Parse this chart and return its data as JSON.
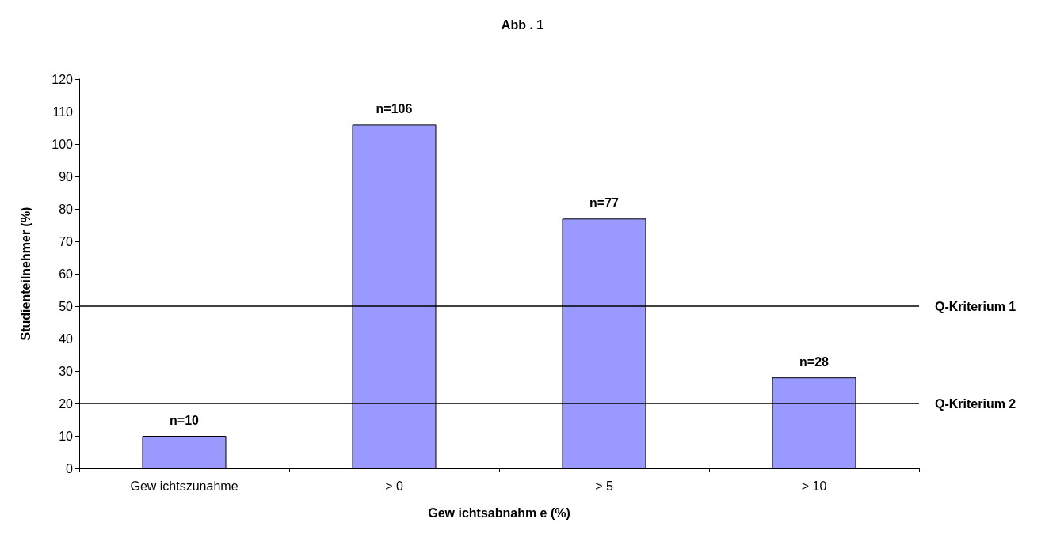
{
  "chart_data": {
    "type": "bar",
    "title": "Abb . 1",
    "xlabel": "Gew ichtsabnahm e (%)",
    "ylabel": "Studienteilnehmer (%)",
    "categories": [
      "Gew ichtszunahme",
      "> 0",
      "> 5",
      "> 10"
    ],
    "values": [
      10,
      106,
      77,
      28
    ],
    "value_labels": [
      "n=10",
      "n=106",
      "n=77",
      "n=28"
    ],
    "color": "#9999ff",
    "ylim": [
      0,
      120
    ],
    "yticks": [
      0,
      10,
      20,
      30,
      40,
      50,
      60,
      70,
      80,
      90,
      100,
      110,
      120
    ],
    "grid": false,
    "ref_lines": [
      {
        "axis": "y",
        "value": 50,
        "label": "Q-Kriterium 1",
        "color": "#000000"
      },
      {
        "axis": "y",
        "value": 20,
        "label": "Q-Kriterium 2",
        "color": "#000000"
      }
    ]
  }
}
